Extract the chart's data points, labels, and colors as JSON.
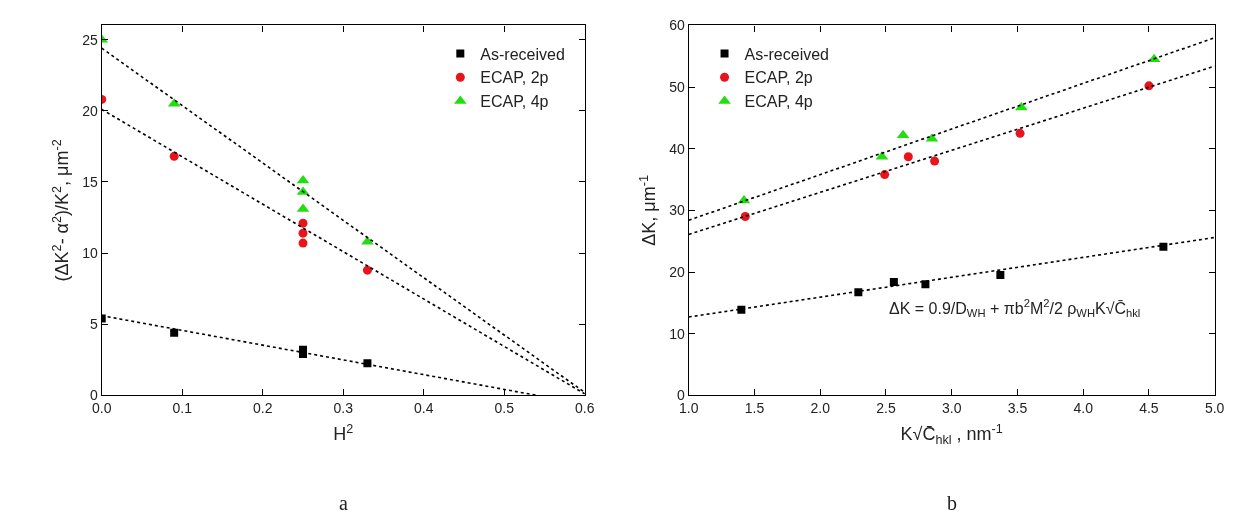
{
  "chart_data": [
    {
      "type": "scatter",
      "xlabel": "H$^{2}$",
      "ylabel": "(ΔK$^{2}$- α$^{2}$)/K$^{2}$, μm$^{-2}$",
      "xlim": [
        0,
        0.6
      ],
      "xticks": [
        {
          "value": 0,
          "label": "0.0"
        },
        0.1,
        0.2,
        0.3,
        0.4,
        0.5,
        0.6
      ],
      "ylim": [
        0,
        26
      ],
      "yticks": [
        0,
        5,
        10,
        15,
        20,
        25
      ],
      "legend": "top right",
      "annotations": [
        "a"
      ],
      "series": [
        {
          "name": "As-received",
          "color": "#000000",
          "marker": "square",
          "x": [
            0,
            0.09,
            0.25,
            0.25,
            0.33
          ],
          "values": [
            5.4,
            4.4,
            3.2,
            2.9,
            2.25
          ]
        },
        {
          "name": "ECAP, 2p",
          "color": "#e8141c",
          "marker": "circle",
          "x": [
            0,
            0.09,
            0.25,
            0.25,
            0.25,
            0.33
          ],
          "values": [
            20.8,
            16.8,
            12.1,
            11.4,
            10.7,
            8.8
          ]
        },
        {
          "name": "ECAP, 4p",
          "color": "#22dd11",
          "marker": "triangle",
          "x": [
            0,
            0.09,
            0.25,
            0.25,
            0.25,
            0.33
          ],
          "values": [
            25,
            20.5,
            15.1,
            14.3,
            13.1,
            10.8
          ]
        },
        {
          "type": "line",
          "color": "#000000",
          "marker": "none",
          "line_style": "dotted",
          "x": [
            0,
            0.54
          ],
          "values": [
            5.6,
            0
          ]
        },
        {
          "type": "line",
          "color": "#000000",
          "marker": "none",
          "line_style": "dotted",
          "x": [
            0,
            0.6
          ],
          "values": [
            20.1,
            0.1
          ]
        },
        {
          "type": "line",
          "color": "#000000",
          "marker": "none",
          "line_style": "dotted",
          "x": [
            0,
            0.6
          ],
          "values": [
            24.4,
            0.2
          ]
        }
      ]
    },
    {
      "type": "scatter",
      "xlabel": "K√C̄$_{hkl}$ , nm$^{-1}$",
      "ylabel": "ΔK, μm$^{-1}$",
      "xlim": [
        1,
        5
      ],
      "xticks": [
        {
          "value": 1,
          "label": "1.0"
        },
        1.5,
        {
          "value": 2,
          "label": "2.0"
        },
        2.5,
        {
          "value": 3,
          "label": "3.0"
        },
        3.5,
        {
          "value": 4,
          "label": "4.0"
        },
        4.5,
        {
          "value": 5,
          "label": "5.0"
        }
      ],
      "ylim": [
        0,
        60
      ],
      "yticks": [
        0,
        10,
        20,
        30,
        40,
        50,
        60
      ],
      "legend": "top left",
      "annotations": [
        "ΔK = 0.9/D$_{WH}$ + πb$^{2}$M$^{2}$/2 ρ$_{WH}$K√C̄$_{hkl}$",
        "b"
      ],
      "series": [
        {
          "name": "As-received",
          "color": "#000000",
          "marker": "square",
          "x": [
            1.4,
            2.29,
            2.56,
            2.8,
            3.37,
            4.61
          ],
          "values": [
            13.9,
            16.7,
            18.4,
            18.0,
            19.5,
            24.1
          ]
        },
        {
          "name": "ECAP, 2p",
          "color": "#e8141c",
          "marker": "circle",
          "x": [
            1.43,
            2.49,
            2.67,
            2.87,
            3.52,
            4.5
          ],
          "values": [
            29.0,
            35.8,
            38.7,
            38.0,
            42.5,
            50.2
          ]
        },
        {
          "name": "ECAP, 4p",
          "color": "#22dd11",
          "marker": "triangle",
          "x": [
            1.42,
            2.47,
            2.63,
            2.85,
            3.53,
            4.54
          ],
          "values": [
            31.6,
            38.7,
            42.2,
            41.6,
            46.7,
            54.5
          ]
        },
        {
          "type": "line",
          "color": "#000000",
          "marker": "none",
          "line_style": "dotted",
          "x": [
            1,
            5
          ],
          "values": [
            12.7,
            25.6
          ]
        },
        {
          "type": "line",
          "color": "#000000",
          "marker": "none",
          "line_style": "dotted",
          "x": [
            1,
            5
          ],
          "values": [
            26.1,
            53.4
          ]
        },
        {
          "type": "line",
          "color": "#000000",
          "marker": "none",
          "line_style": "dotted",
          "x": [
            1,
            5
          ],
          "values": [
            28.4,
            58
          ]
        }
      ]
    }
  ]
}
